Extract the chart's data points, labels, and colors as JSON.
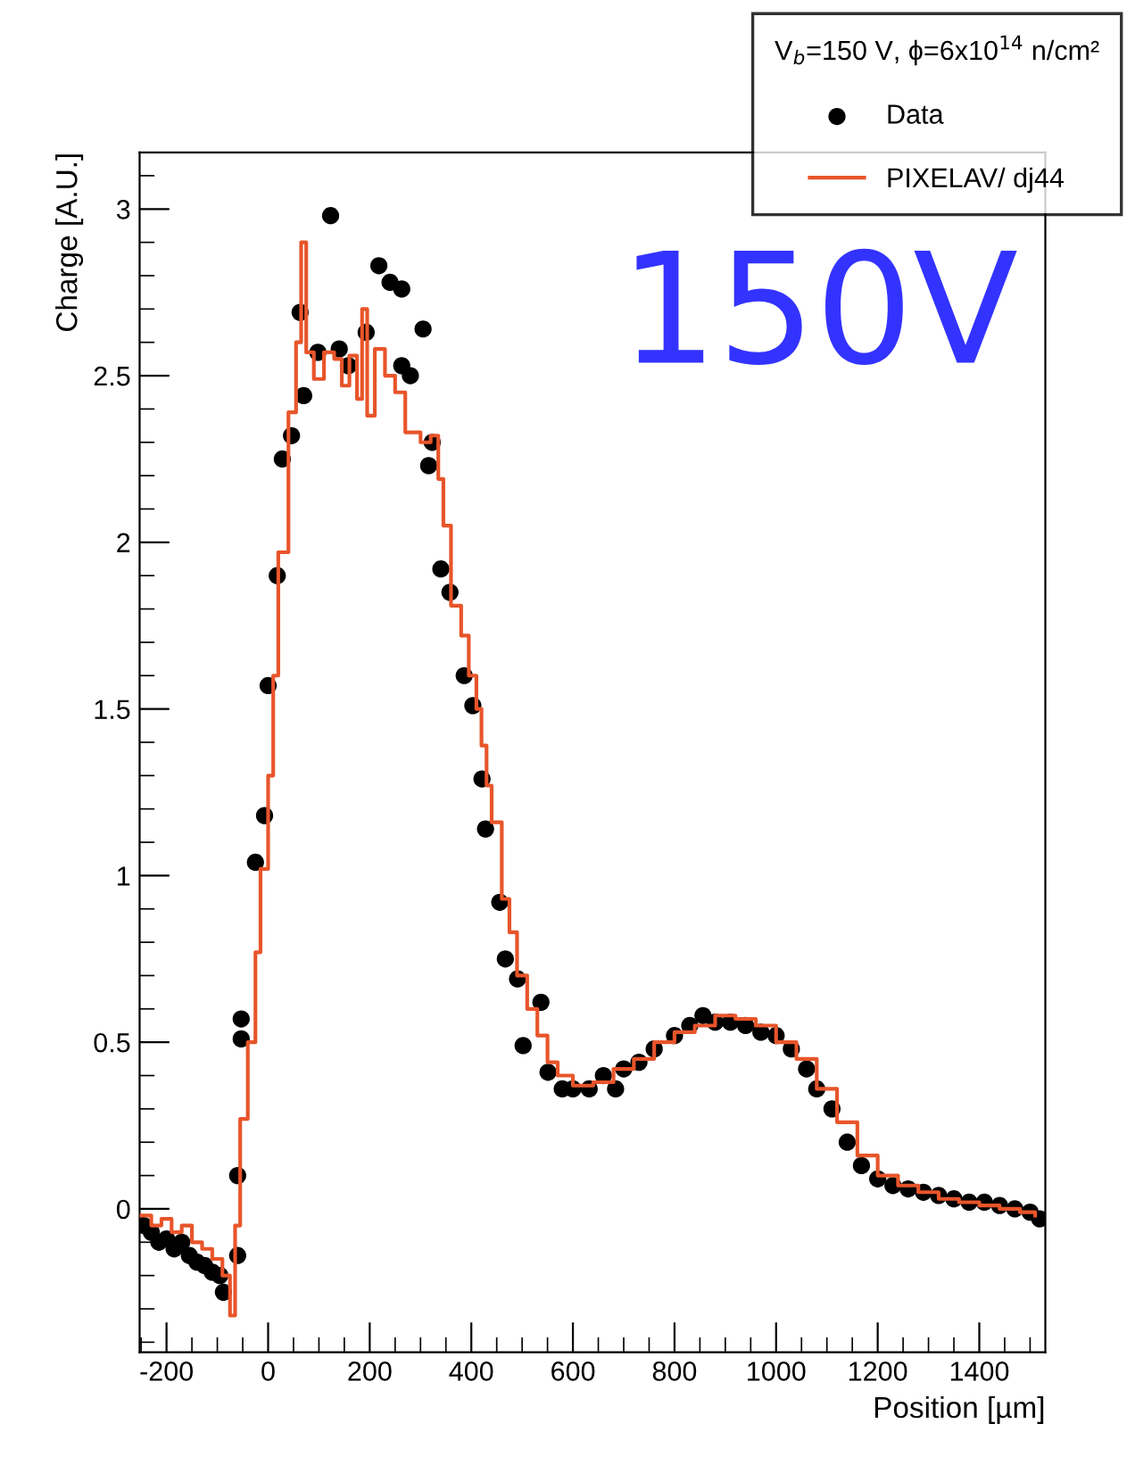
{
  "chart_data": {
    "type": "scatter",
    "xlabel": "Position [µm]",
    "ylabel": "Charge [A.U.]",
    "legend_title": "V$_{b}$=150 V, ϕ=6x10$^{14}$ n/cm²",
    "legend": "top right",
    "xlim": [
      -253,
      1530
    ],
    "ylim": [
      -0.43,
      3.17
    ],
    "xticks": [
      -200,
      0,
      200,
      400,
      600,
      800,
      1000,
      1200,
      1400
    ],
    "yticks": [
      0,
      0.5,
      1,
      1.5,
      2,
      2.5,
      3
    ],
    "grid": false,
    "annotations": [
      "150V"
    ],
    "series": [
      {
        "name": "Data",
        "marker": "circle",
        "color": "#000000",
        "x": [
          -245,
          -230,
          -215,
          -200,
          -185,
          -170,
          -155,
          -140,
          -125,
          -110,
          -95,
          -88,
          -60,
          -60,
          -53,
          -53,
          -25,
          -7,
          0,
          18,
          28,
          46,
          63,
          70,
          98,
          123,
          140,
          158,
          193,
          218,
          240,
          263,
          263,
          280,
          305,
          316,
          323,
          340,
          358,
          386,
          403,
          421,
          428,
          456,
          467,
          491,
          502,
          537,
          551,
          579,
          600,
          632,
          660,
          684,
          700,
          730,
          760,
          800,
          830,
          856,
          880,
          910,
          940,
          970,
          1000,
          1030,
          1060,
          1080,
          1110,
          1140,
          1168,
          1200,
          1230,
          1260,
          1290,
          1320,
          1350,
          1380,
          1410,
          1440,
          1470,
          1500,
          1519
        ],
        "values": [
          -0.05,
          -0.07,
          -0.1,
          -0.09,
          -0.12,
          -0.1,
          -0.14,
          -0.16,
          -0.17,
          -0.19,
          -0.2,
          -0.25,
          -0.14,
          0.1,
          0.57,
          0.51,
          1.04,
          1.18,
          1.57,
          1.9,
          2.25,
          2.32,
          2.69,
          2.44,
          2.57,
          2.98,
          2.58,
          2.53,
          2.63,
          2.83,
          2.78,
          2.76,
          2.53,
          2.5,
          2.64,
          2.23,
          2.3,
          1.92,
          1.85,
          1.6,
          1.51,
          1.29,
          1.14,
          0.92,
          0.75,
          0.69,
          0.49,
          0.62,
          0.41,
          0.36,
          0.36,
          0.36,
          0.4,
          0.36,
          0.42,
          0.44,
          0.48,
          0.52,
          0.55,
          0.58,
          0.56,
          0.56,
          0.55,
          0.53,
          0.52,
          0.48,
          0.42,
          0.36,
          0.3,
          0.2,
          0.13,
          0.09,
          0.07,
          0.06,
          0.05,
          0.04,
          0.03,
          0.02,
          0.02,
          0.01,
          0.0,
          -0.01,
          -0.03
        ]
      },
      {
        "name": "PIXELAV/ dj44",
        "type": "step",
        "color": "#e8552a",
        "x": [
          -250,
          -230,
          -210,
          -190,
          -170,
          -150,
          -130,
          -110,
          -90,
          -75,
          -65,
          -55,
          -40,
          -25,
          -15,
          0,
          10,
          20,
          40,
          55,
          65,
          75,
          90,
          110,
          130,
          145,
          160,
          175,
          185,
          195,
          210,
          230,
          250,
          270,
          300,
          320,
          335,
          345,
          360,
          380,
          395,
          410,
          420,
          430,
          440,
          460,
          475,
          490,
          510,
          530,
          550,
          570,
          600,
          640,
          680,
          720,
          760,
          800,
          840,
          880,
          920,
          960,
          1000,
          1040,
          1080,
          1120,
          1160,
          1200,
          1240,
          1280,
          1320,
          1360,
          1400,
          1440,
          1480,
          1510
        ],
        "values": [
          -0.02,
          -0.05,
          -0.03,
          -0.07,
          -0.05,
          -0.1,
          -0.12,
          -0.15,
          -0.2,
          -0.32,
          -0.05,
          0.27,
          0.5,
          0.77,
          1.02,
          1.3,
          1.6,
          1.97,
          2.39,
          2.6,
          2.9,
          2.57,
          2.49,
          2.57,
          2.55,
          2.47,
          2.56,
          2.43,
          2.7,
          2.38,
          2.58,
          2.5,
          2.45,
          2.33,
          2.3,
          2.32,
          2.19,
          2.05,
          1.81,
          1.72,
          1.6,
          1.5,
          1.39,
          1.27,
          1.16,
          0.93,
          0.83,
          0.7,
          0.6,
          0.52,
          0.44,
          0.4,
          0.37,
          0.38,
          0.42,
          0.45,
          0.5,
          0.53,
          0.55,
          0.58,
          0.57,
          0.55,
          0.5,
          0.45,
          0.36,
          0.26,
          0.16,
          0.1,
          0.07,
          0.05,
          0.03,
          0.02,
          0.01,
          0.0,
          -0.01,
          -0.02
        ]
      }
    ]
  }
}
